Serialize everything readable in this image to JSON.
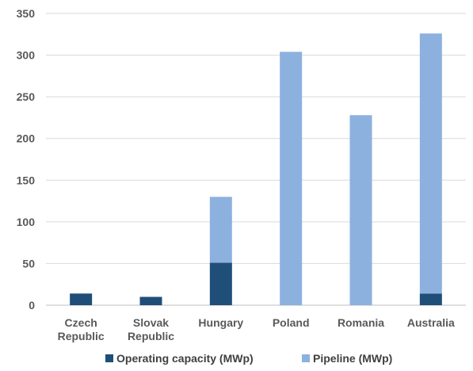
{
  "chart_data": {
    "type": "bar",
    "stacked": true,
    "categories": [
      [
        "Czech",
        "Republic"
      ],
      [
        "Slovak",
        "Republic"
      ],
      [
        "Hungary"
      ],
      [
        "Poland"
      ],
      [
        "Romania"
      ],
      [
        "Australia"
      ]
    ],
    "series": [
      {
        "name": "Operating capacity (MWp)",
        "color": "#1f4e79",
        "values": [
          14,
          10,
          51,
          0,
          0,
          14
        ]
      },
      {
        "name": "Pipeline (MWp)",
        "color": "#8cb1df",
        "values": [
          0,
          0,
          79,
          304,
          228,
          312
        ]
      }
    ],
    "ylim": [
      0,
      350
    ],
    "yticks": [
      0,
      50,
      100,
      150,
      200,
      250,
      300,
      350
    ],
    "grid": true,
    "legend": "bottom",
    "title": "",
    "xlabel": "",
    "ylabel": ""
  }
}
